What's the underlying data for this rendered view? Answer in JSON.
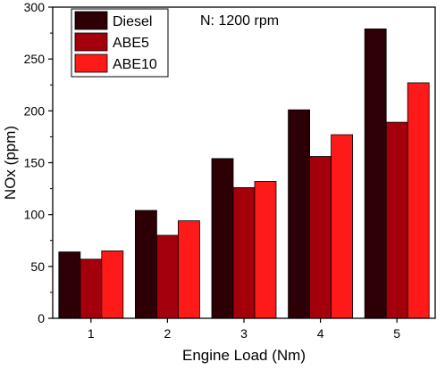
{
  "chart_data": {
    "type": "bar",
    "title": "",
    "annotation": "N: 1200 rpm",
    "xlabel": "Engine Load (Nm)",
    "ylabel": "NOx (ppm)",
    "categories": [
      "1",
      "2",
      "3",
      "4",
      "5"
    ],
    "ylim": [
      0,
      300
    ],
    "yticks": [
      "0",
      "50",
      "100",
      "150",
      "200",
      "250",
      "300"
    ],
    "series": [
      {
        "name": "Diesel",
        "color": "#2d0006",
        "values": [
          64,
          104,
          154,
          201,
          279
        ]
      },
      {
        "name": "ABE5",
        "color": "#a3000c",
        "values": [
          57,
          80,
          126,
          156,
          189
        ]
      },
      {
        "name": "ABE10",
        "color": "#ff1a1a",
        "values": [
          65,
          94,
          132,
          177,
          227
        ]
      }
    ],
    "legend_position": "top-left",
    "grid": false
  }
}
